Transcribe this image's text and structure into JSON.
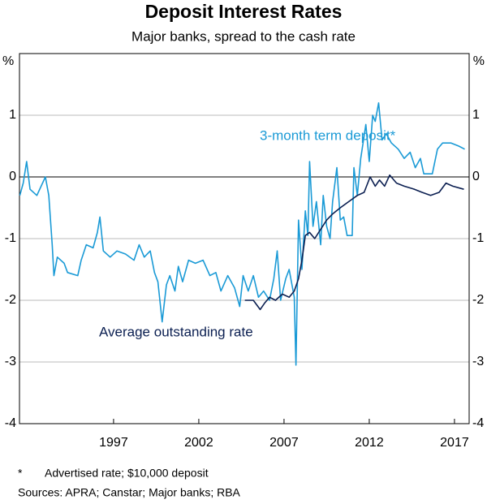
{
  "chart_data": {
    "type": "line",
    "title": "Deposit Interest Rates",
    "subtitle": "Major banks, spread to the cash rate",
    "y_unit": "%",
    "xlim": [
      1991.48,
      2017.86
    ],
    "xticks": [
      1997,
      2002,
      2007,
      2012,
      2017
    ],
    "ylim": [
      -4,
      2
    ],
    "yticks": [
      -4,
      -3,
      -2,
      -1,
      0,
      1
    ],
    "y2lim": [
      -4,
      2
    ],
    "y2ticks": [
      -4,
      -3,
      -2,
      -1,
      0,
      1
    ],
    "grid": true,
    "series": [
      {
        "name": "3-month term deposit*",
        "color": "#1a9ad6",
        "x": [
          1991.5,
          1991.7,
          1991.9,
          1992.1,
          1992.5,
          1993.0,
          1993.2,
          1993.4,
          1993.5,
          1993.7,
          1994.1,
          1994.3,
          1994.9,
          1995.1,
          1995.4,
          1995.8,
          1996.05,
          1996.2,
          1996.4,
          1996.8,
          1997.2,
          1997.7,
          1998.2,
          1998.5,
          1998.8,
          1999.15,
          1999.4,
          1999.6,
          1999.85,
          2000.1,
          2000.3,
          2000.6,
          2000.8,
          2001.05,
          2001.4,
          2001.8,
          2002.25,
          2002.65,
          2003.0,
          2003.3,
          2003.7,
          2004.1,
          2004.4,
          2004.6,
          2004.9,
          2005.2,
          2005.5,
          2005.8,
          2006.15,
          2006.4,
          2006.6,
          2006.8,
          2007.1,
          2007.3,
          2007.6,
          2007.7,
          2007.85,
          2008.05,
          2008.25,
          2008.4,
          2008.5,
          2008.7,
          2008.9,
          2009.15,
          2009.3,
          2009.5,
          2009.7,
          2009.85,
          2010.1,
          2010.3,
          2010.5,
          2010.7,
          2011.0,
          2011.1,
          2011.3,
          2011.5,
          2011.8,
          2012.0,
          2012.2,
          2012.35,
          2012.55,
          2012.75,
          2013.0,
          2013.3,
          2013.7,
          2014.05,
          2014.4,
          2014.7,
          2015.0,
          2015.2,
          2015.7,
          2016.0,
          2016.3,
          2016.8,
          2017.25,
          2017.6
        ],
        "values": [
          -0.3,
          -0.1,
          0.25,
          -0.2,
          -0.3,
          0,
          -0.3,
          -1.1,
          -1.6,
          -1.3,
          -1.4,
          -1.55,
          -1.6,
          -1.35,
          -1.1,
          -1.15,
          -0.9,
          -0.65,
          -1.2,
          -1.3,
          -1.2,
          -1.25,
          -1.35,
          -1.1,
          -1.3,
          -1.2,
          -1.55,
          -1.7,
          -2.35,
          -1.75,
          -1.6,
          -1.85,
          -1.45,
          -1.7,
          -1.35,
          -1.4,
          -1.35,
          -1.6,
          -1.55,
          -1.85,
          -1.6,
          -1.8,
          -2.1,
          -1.6,
          -1.85,
          -1.6,
          -1.95,
          -1.85,
          -2.0,
          -1.65,
          -1.2,
          -2.0,
          -1.65,
          -1.5,
          -1.95,
          -3.05,
          -0.7,
          -1.5,
          -0.55,
          -0.95,
          0.25,
          -0.8,
          -0.4,
          -1.1,
          -0.3,
          -0.8,
          -1.0,
          -0.4,
          0.15,
          -0.7,
          -0.65,
          -0.95,
          -0.95,
          0.15,
          -0.3,
          0.3,
          0.85,
          0.25,
          1.0,
          0.9,
          1.2,
          0.6,
          0.7,
          0.55,
          0.45,
          0.3,
          0.4,
          0.15,
          0.3,
          0.05,
          0.05,
          0.45,
          0.55,
          0.55,
          0.5,
          0.45
        ]
      },
      {
        "name": "Average outstanding rate",
        "color": "#0b1f51",
        "x": [
          2004.7,
          2005.2,
          2005.6,
          2005.85,
          2006.15,
          2006.5,
          2006.9,
          2007.3,
          2007.6,
          2007.85,
          2008.05,
          2008.25,
          2008.5,
          2008.8,
          2009.15,
          2009.5,
          2009.85,
          2010.3,
          2010.8,
          2011.3,
          2011.7,
          2012.05,
          2012.35,
          2012.6,
          2012.9,
          2013.2,
          2013.6,
          2014.05,
          2014.65,
          2015.1,
          2015.6,
          2016.1,
          2016.5,
          2016.9,
          2017.55
        ],
        "values": [
          -2.0,
          -2.0,
          -2.15,
          -2.05,
          -1.95,
          -2.0,
          -1.9,
          -1.95,
          -1.85,
          -1.65,
          -1.35,
          -0.95,
          -0.9,
          -1.0,
          -0.85,
          -0.7,
          -0.6,
          -0.5,
          -0.4,
          -0.3,
          -0.25,
          0.0,
          -0.15,
          -0.05,
          -0.15,
          0.03,
          -0.1,
          -0.15,
          -0.2,
          -0.25,
          -0.3,
          -0.25,
          -0.1,
          -0.15,
          -0.2
        ]
      }
    ],
    "footnote": {
      "marker": "*",
      "text": "Advertised rate; $10,000 deposit"
    },
    "sources": "Sources: APRA; Canstar; Major banks; RBA"
  }
}
